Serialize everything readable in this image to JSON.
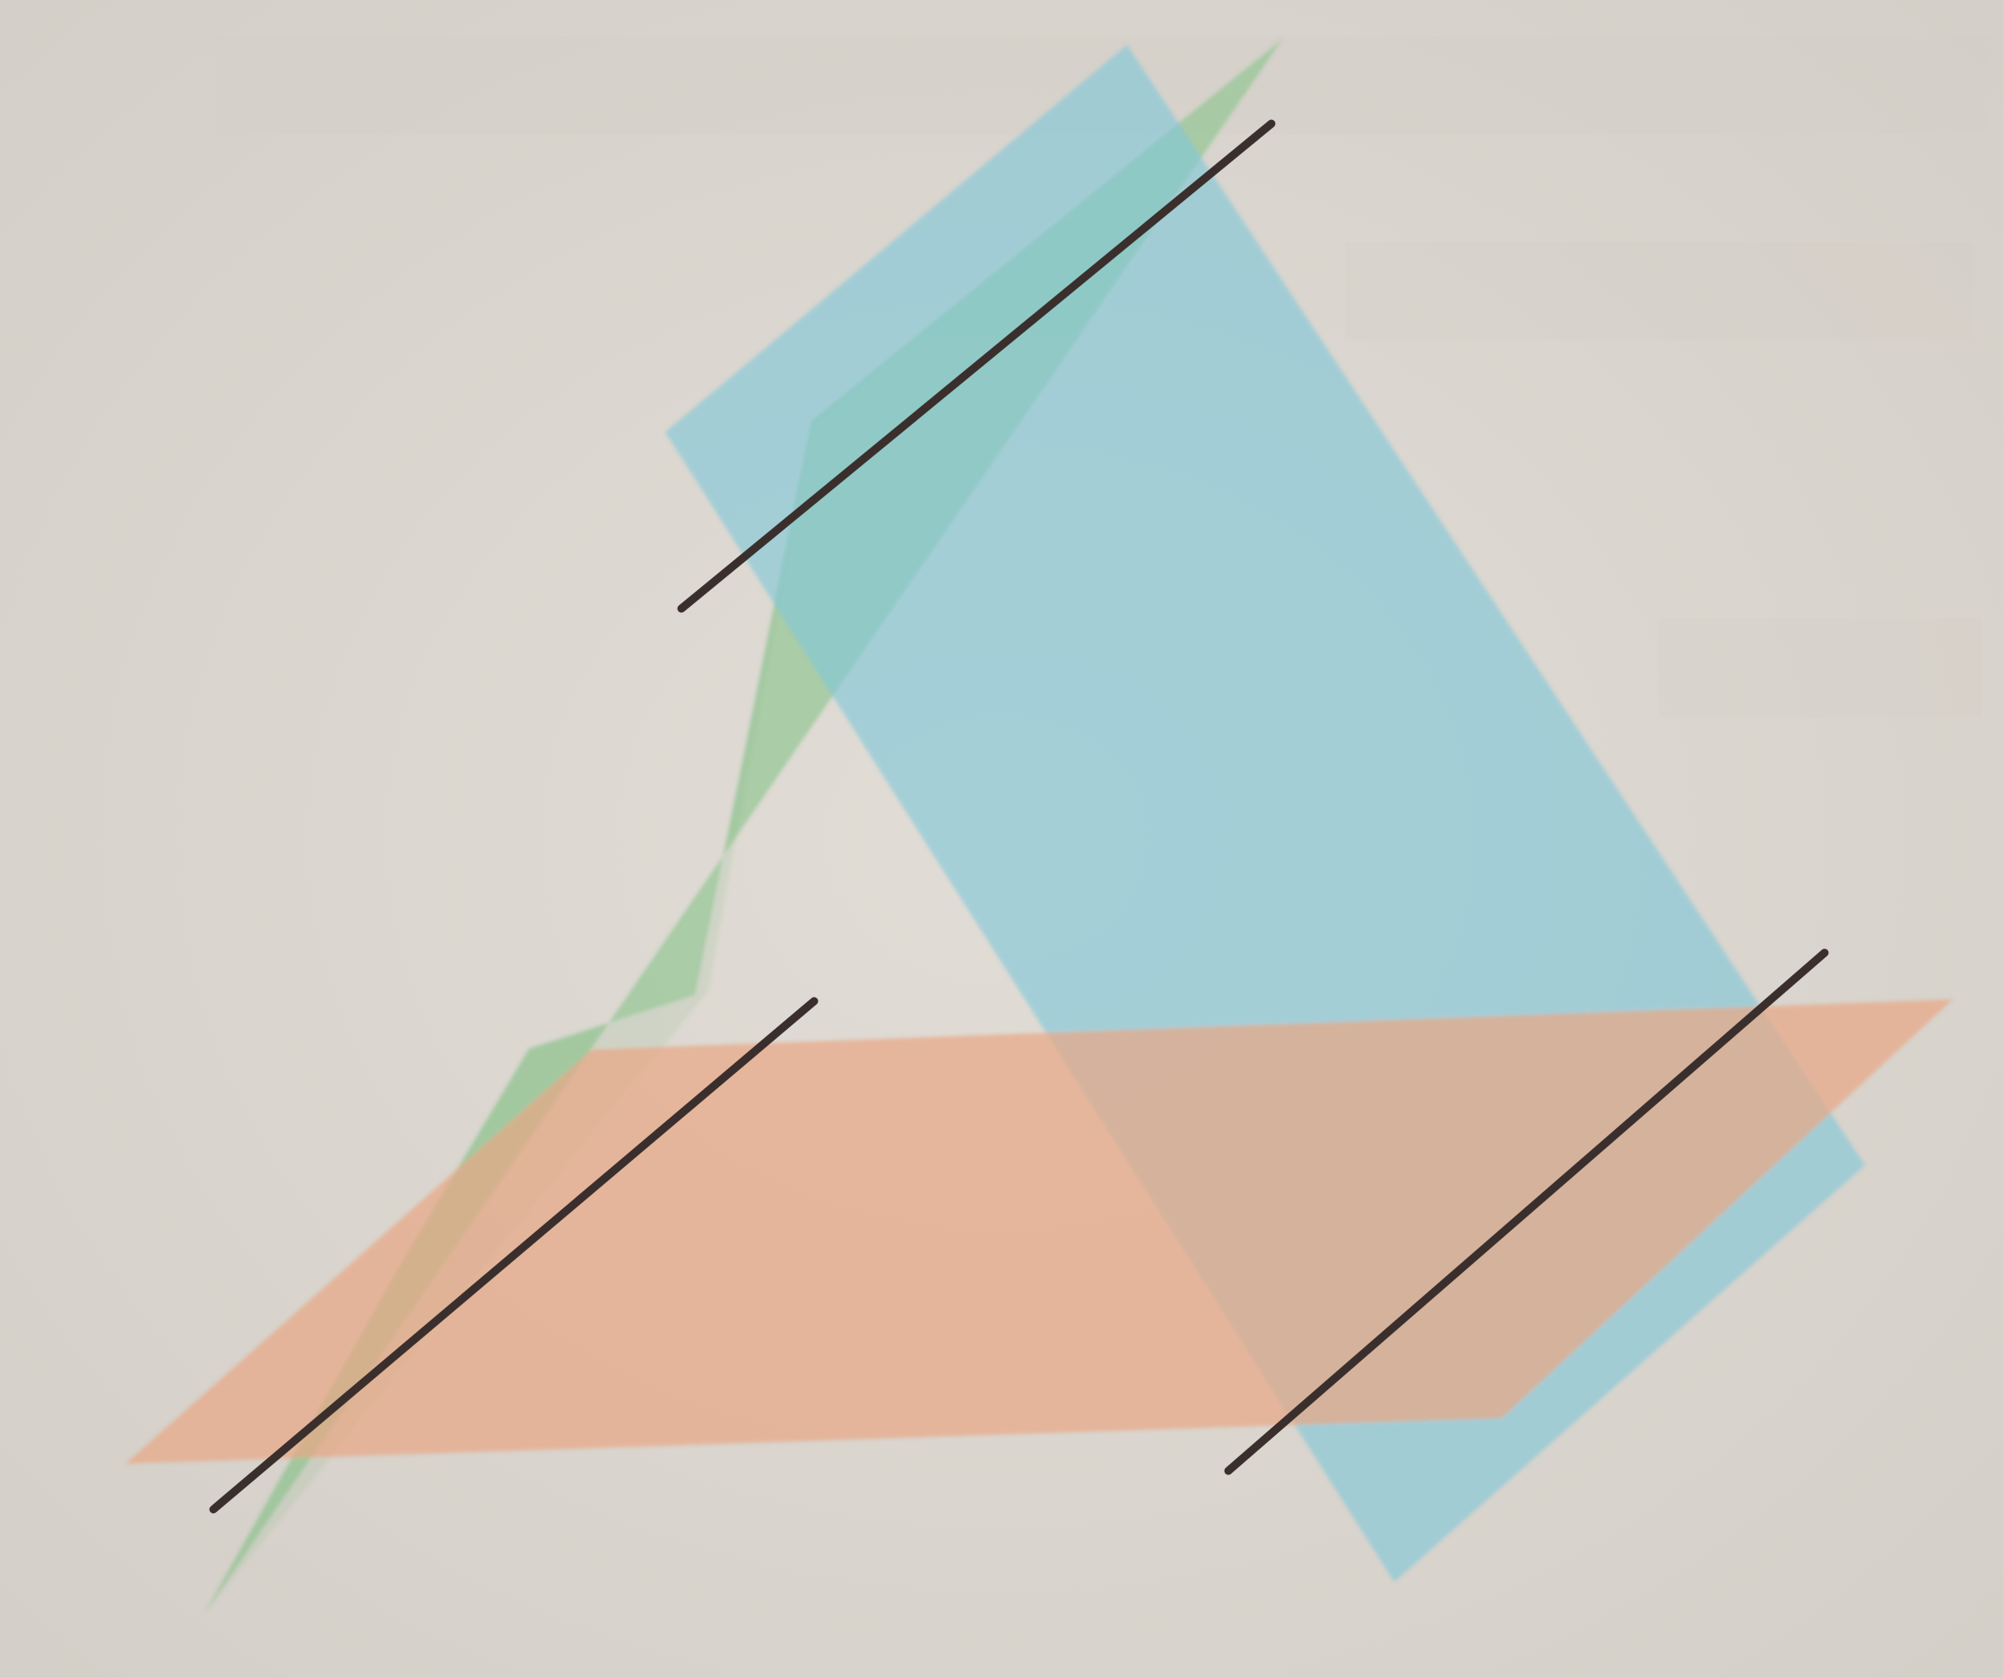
{
  "diagram": {
    "planes": [
      {
        "id": "plane-green",
        "color": "#8ec58f",
        "opacity": 0.65
      },
      {
        "id": "plane-blue",
        "color": "#7fc6d8",
        "opacity": 0.62
      },
      {
        "id": "plane-orange",
        "color": "#e7a887",
        "opacity": 0.72
      }
    ],
    "intersection_lines": [
      {
        "id": "line-green-blue",
        "color": "#3a2f2c"
      },
      {
        "id": "line-green-orange",
        "color": "#3a2f2c"
      },
      {
        "id": "line-blue-orange",
        "color": "#3a2f2c"
      }
    ]
  }
}
